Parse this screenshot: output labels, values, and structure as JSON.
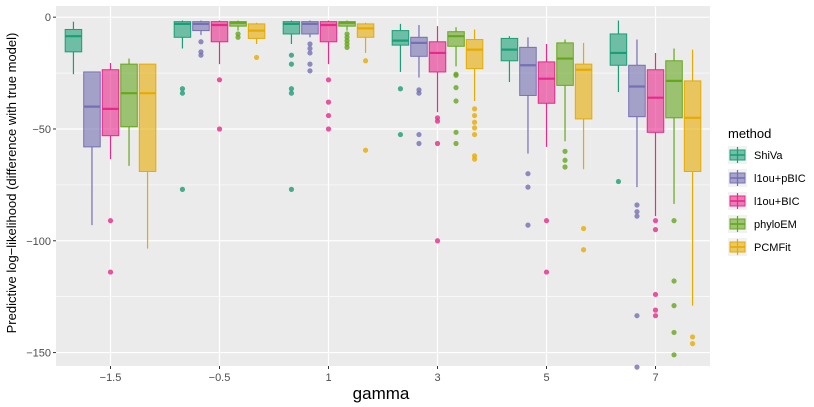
{
  "chart_data": {
    "type": "boxplot",
    "title": "",
    "xlabel": "gamma",
    "ylabel": "Predictive log−likelihood (difference with true model)",
    "categories": [
      "-1.5",
      "-0.5",
      "1",
      "3",
      "5",
      "7"
    ],
    "ylim": [
      -156,
      5
    ],
    "y_ticks": [
      0,
      -50,
      -100,
      -150
    ],
    "y_tick_labels": [
      "0",
      "−50",
      "−100",
      "−150"
    ],
    "grid": true,
    "legend": {
      "title": "method",
      "position": "right"
    },
    "series": [
      {
        "name": "ShiVa",
        "color": "#1b9e77",
        "boxes": [
          {
            "q1": -15.5,
            "median": -8.5,
            "q3": -5.5,
            "low": -25.5,
            "high": -2,
            "outliers": []
          },
          {
            "q1": -9,
            "median": -3,
            "q3": -2,
            "low": -14,
            "high": -1.5,
            "outliers": [
              -32,
              -34,
              -77
            ]
          },
          {
            "q1": -7.5,
            "median": -3,
            "q3": -2,
            "low": -12,
            "high": -1.5,
            "outliers": [
              -17,
              -21,
              -32,
              -34,
              -77
            ]
          },
          {
            "q1": -12.5,
            "median": -10.5,
            "q3": -6,
            "low": -24.5,
            "high": -3,
            "outliers": [
              -32,
              -52.5
            ]
          },
          {
            "q1": -19.5,
            "median": -14.5,
            "q3": -9.5,
            "low": -29,
            "high": -8.5,
            "outliers": []
          },
          {
            "q1": -21.5,
            "median": -16,
            "q3": -7.5,
            "low": -33.5,
            "high": -1.5,
            "outliers": [
              -73.5
            ]
          }
        ]
      },
      {
        "name": "l1ou+pBIC",
        "color": "#7570b3",
        "boxes": [
          {
            "q1": -58,
            "median": -40,
            "q3": -24.5,
            "low": -93,
            "high": -24.5,
            "outliers": []
          },
          {
            "q1": -6,
            "median": -3,
            "q3": -2,
            "low": -8,
            "high": -1.5,
            "outliers": [
              -11,
              -15.5,
              -17
            ]
          },
          {
            "q1": -7.5,
            "median": -3,
            "q3": -2,
            "low": -9,
            "high": -1.5,
            "outliers": [
              -12,
              -14,
              -16,
              -21,
              -24
            ]
          },
          {
            "q1": -17.5,
            "median": -11.5,
            "q3": -9,
            "low": -27,
            "high": -3.5,
            "outliers": [
              -32.5,
              -34,
              -52.5,
              -56.5
            ]
          },
          {
            "q1": -35,
            "median": -21.5,
            "q3": -13.5,
            "low": -61,
            "high": -9,
            "outliers": [
              -70,
              -76,
              -93
            ]
          },
          {
            "q1": -44.5,
            "median": -31,
            "q3": -21.5,
            "low": -76,
            "high": -10,
            "outliers": [
              -84,
              -87,
              -89,
              -133.5,
              -156.5
            ]
          }
        ]
      },
      {
        "name": "l1ou+BIC",
        "color": "#e7298a",
        "boxes": [
          {
            "q1": -53,
            "median": -41,
            "q3": -23.5,
            "low": -63.5,
            "high": -20.5,
            "outliers": [
              -91,
              -114
            ]
          },
          {
            "q1": -11,
            "median": -3.5,
            "q3": -2,
            "low": -21,
            "high": -1.5,
            "outliers": [
              -28,
              -50
            ]
          },
          {
            "q1": -11,
            "median": -3.5,
            "q3": -2,
            "low": -21,
            "high": -1.5,
            "outliers": [
              -28,
              -38,
              -44,
              -50
            ]
          },
          {
            "q1": -24.5,
            "median": -16,
            "q3": -11,
            "low": -42.5,
            "high": -4,
            "outliers": [
              -45,
              -46.5,
              -56.5,
              -100
            ]
          },
          {
            "q1": -38.5,
            "median": -27.5,
            "q3": -20,
            "low": -58,
            "high": -12,
            "outliers": [
              -91,
              -114
            ]
          },
          {
            "q1": -51.5,
            "median": -36,
            "q3": -23.5,
            "low": -89,
            "high": -16,
            "outliers": [
              -91,
              -95,
              -124,
              -131,
              -133.5
            ]
          }
        ]
      },
      {
        "name": "phyloEM",
        "color": "#66a61e",
        "boxes": [
          {
            "q1": -49,
            "median": -34,
            "q3": -21,
            "low": -66.5,
            "high": -18.5,
            "outliers": []
          },
          {
            "q1": -4,
            "median": -2.5,
            "q3": -2,
            "low": -6,
            "high": -1.5,
            "outliers": [
              -7.5,
              -9
            ]
          },
          {
            "q1": -4,
            "median": -2.5,
            "q3": -2,
            "low": -6,
            "high": -1.5,
            "outliers": [
              -7.5,
              -9,
              -10.5,
              -12,
              -13.5
            ]
          },
          {
            "q1": -13,
            "median": -8.5,
            "q3": -6.5,
            "low": -22,
            "high": -4.5,
            "outliers": [
              -25.5,
              -26,
              -31.5,
              -37.5,
              -51.5,
              -56.5
            ]
          },
          {
            "q1": -30.5,
            "median": -18.5,
            "q3": -11.5,
            "low": -55.5,
            "high": -10,
            "outliers": [
              -60,
              -64,
              -67
            ]
          },
          {
            "q1": -45,
            "median": -28.5,
            "q3": -19.5,
            "low": -83.5,
            "high": -14,
            "outliers": [
              -91,
              -118,
              -129,
              -141,
              -151
            ]
          }
        ]
      },
      {
        "name": "PCMFit",
        "color": "#e6ab02",
        "boxes": [
          {
            "q1": -69,
            "median": -34,
            "q3": -21,
            "low": -103.5,
            "high": -21,
            "outliers": []
          },
          {
            "q1": -9.5,
            "median": -6,
            "q3": -3,
            "low": -12,
            "high": -2.5,
            "outliers": [
              -18
            ]
          },
          {
            "q1": -9,
            "median": -5,
            "q3": -3,
            "low": -16,
            "high": -2.5,
            "outliers": [
              -19.5,
              -59.5
            ]
          },
          {
            "q1": -23,
            "median": -14.5,
            "q3": -10,
            "low": -37.5,
            "high": -5.5,
            "outliers": [
              -41,
              -44,
              -47,
              -49.5,
              -52.5,
              -62,
              -63.5
            ]
          },
          {
            "q1": -45.5,
            "median": -23.5,
            "q3": -21,
            "low": -68,
            "high": -11.5,
            "outliers": [
              -94.5,
              -104
            ]
          },
          {
            "q1": -69,
            "median": -45,
            "q3": -28.5,
            "low": -129,
            "high": -14.5,
            "outliers": [
              -143,
              -146
            ]
          }
        ]
      }
    ]
  }
}
